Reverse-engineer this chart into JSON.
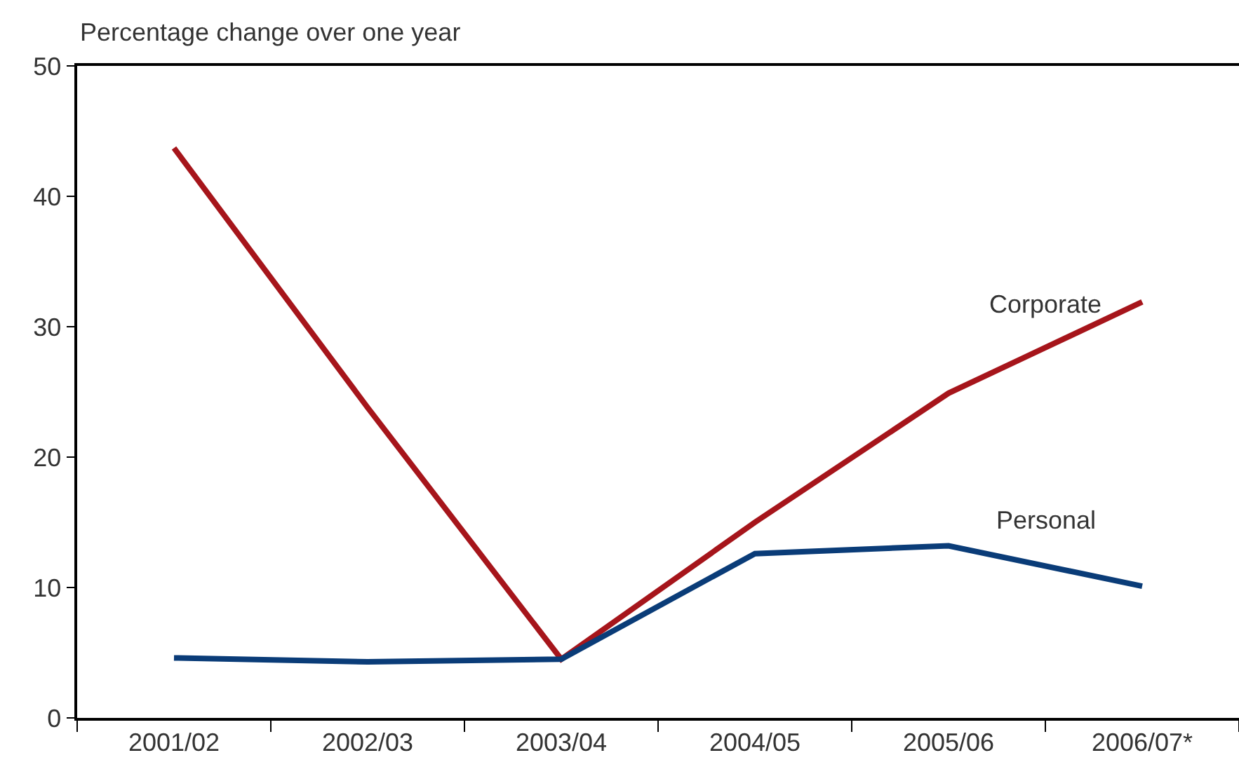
{
  "chart_data": {
    "type": "line",
    "ylabel": "Percentage change over one year",
    "categories": [
      "2001/02",
      "2002/03",
      "2003/04",
      "2004/05",
      "2005/06",
      "2006/07*"
    ],
    "series": [
      {
        "name": "Corporate",
        "color": "#a6151b",
        "values": [
          43.7,
          23.8,
          4.5,
          15.0,
          24.9,
          31.9
        ]
      },
      {
        "name": "Personal",
        "color": "#0a3c78",
        "values": [
          4.6,
          4.3,
          4.5,
          12.6,
          13.2,
          10.1
        ]
      }
    ],
    "ylim": [
      0,
      50
    ],
    "yticks": [
      0,
      10,
      20,
      30,
      40,
      50
    ],
    "legend": false,
    "marker": "none",
    "line_style": "solid"
  }
}
